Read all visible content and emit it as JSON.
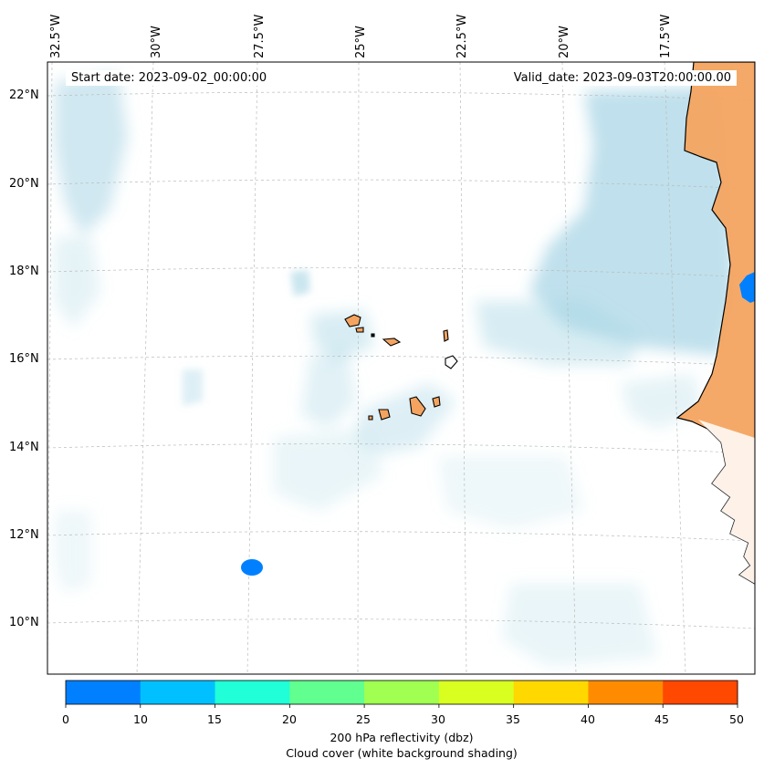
{
  "header": {
    "start_date": "Start date: 2023-09-02_00:00:00",
    "valid_date": "Valid_date: 2023-09-03T20:00:00.00"
  },
  "map": {
    "lon_labels": [
      "32.5°W",
      "30°W",
      "27.5°W",
      "25°W",
      "22.5°W",
      "20°W",
      "17.5°W"
    ],
    "lat_labels": [
      "22°N",
      "20°N",
      "18°N",
      "16°N",
      "14°N",
      "12°N",
      "10°N"
    ],
    "land_color": "#f4a460",
    "cloud_color": "#a9d6e5",
    "reflectivity_cell_color": "#0080ff"
  },
  "colorbar": {
    "ticks": [
      "0",
      "10",
      "15",
      "20",
      "25",
      "30",
      "35",
      "40",
      "45",
      "50"
    ],
    "colors": [
      "#0080ff",
      "#00c0ff",
      "#20ffd8",
      "#60ff90",
      "#a0ff50",
      "#d8ff20",
      "#ffd800",
      "#ff8c00",
      "#ff4800"
    ],
    "label": "200 hPa reflectivity (dbz)",
    "sublabel": "Cloud cover (white background shading)"
  }
}
